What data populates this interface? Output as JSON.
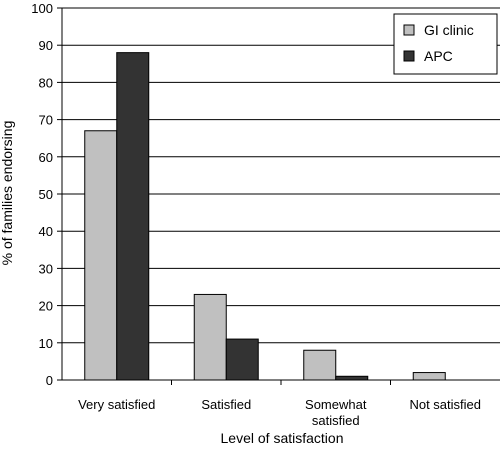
{
  "chart_data": {
    "type": "bar",
    "xlabel": "Level of satisfaction",
    "ylabel": "% of families endorsing",
    "ylim": [
      0,
      100
    ],
    "yticks": [
      0,
      10,
      20,
      30,
      40,
      50,
      60,
      70,
      80,
      90,
      100
    ],
    "categories": [
      [
        "Very satisfied"
      ],
      [
        "Satisfied"
      ],
      [
        "Somewhat",
        "satisfied"
      ],
      [
        "Not satisfied"
      ]
    ],
    "series": [
      {
        "name": "GI clinic",
        "color": "#c0c0c0",
        "values": [
          67,
          23,
          8,
          2
        ]
      },
      {
        "name": "APC",
        "color": "#333333",
        "values": [
          88,
          11,
          1,
          0
        ]
      }
    ],
    "grid": true,
    "legend_position": "top-right"
  }
}
